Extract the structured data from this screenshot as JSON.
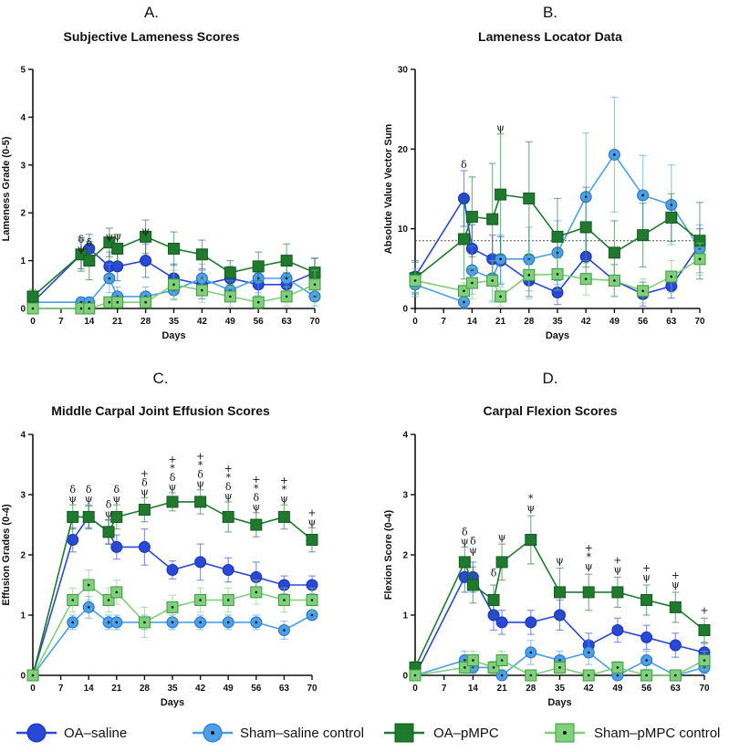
{
  "legend": [
    {
      "name": "OA–saline",
      "marker": "circle",
      "fill": "#2848d8",
      "stroke": "#1a32a8",
      "dot": false
    },
    {
      "name": "Sham–saline control",
      "marker": "circle",
      "fill": "#4aa0e8",
      "stroke": "#2a6fc0",
      "dot": true
    },
    {
      "name": "OA–pMPC",
      "marker": "square",
      "fill": "#1f7a2e",
      "stroke": "#145a20",
      "dot": false
    },
    {
      "name": "Sham–pMPC control",
      "marker": "square",
      "fill": "#7ed07a",
      "stroke": "#3e9a3e",
      "dot": true
    }
  ],
  "chart_data": [
    {
      "id": "A",
      "letter": "A.",
      "type": "line",
      "title": "Subjective Lameness Scores",
      "xlabel": "Days",
      "ylabel": "Lameness Grade (0-5)",
      "xlim": [
        0,
        70
      ],
      "ylim": [
        0,
        5
      ],
      "xticks": [
        0,
        7,
        14,
        21,
        28,
        35,
        42,
        49,
        56,
        63,
        70
      ],
      "yticks": [
        0,
        1,
        2,
        3,
        4,
        5
      ],
      "series": [
        {
          "name": "OA–saline",
          "x": [
            0,
            12,
            14,
            19,
            21,
            28,
            35,
            42,
            49,
            56,
            63,
            70
          ],
          "y": [
            0.13,
            1.13,
            1.25,
            0.88,
            0.88,
            1.0,
            0.63,
            0.5,
            0.63,
            0.5,
            0.5,
            0.75
          ],
          "err": [
            0.1,
            0.3,
            0.3,
            0.3,
            0.3,
            0.35,
            0.3,
            0.3,
            0.25,
            0.25,
            0.25,
            0.3
          ]
        },
        {
          "name": "Sham–saline control",
          "x": [
            0,
            12,
            14,
            19,
            21,
            28,
            35,
            42,
            49,
            56,
            63,
            70
          ],
          "y": [
            0.13,
            0.13,
            0.13,
            0.63,
            0.25,
            0.25,
            0.38,
            0.63,
            0.38,
            0.63,
            0.63,
            0.25
          ],
          "err": [
            0.1,
            0.1,
            0.1,
            0.3,
            0.2,
            0.2,
            0.2,
            0.3,
            0.2,
            0.3,
            0.3,
            0.2
          ]
        },
        {
          "name": "OA–pMPC",
          "x": [
            0,
            12,
            14,
            19,
            21,
            28,
            35,
            42,
            49,
            56,
            63,
            70
          ],
          "y": [
            0.25,
            1.13,
            1.0,
            1.38,
            1.25,
            1.5,
            1.25,
            1.13,
            0.75,
            0.88,
            1.0,
            0.75
          ],
          "err": [
            0.15,
            0.35,
            0.4,
            0.3,
            0.3,
            0.35,
            0.35,
            0.3,
            0.25,
            0.3,
            0.35,
            0.3
          ]
        },
        {
          "name": "Sham–pMPC control",
          "x": [
            0,
            12,
            14,
            19,
            21,
            28,
            35,
            42,
            49,
            56,
            63,
            70
          ],
          "y": [
            0.0,
            0.0,
            0.0,
            0.13,
            0.13,
            0.13,
            0.5,
            0.38,
            0.25,
            0.13,
            0.25,
            0.5
          ],
          "err": [
            0.05,
            0.05,
            0.05,
            0.1,
            0.1,
            0.1,
            0.3,
            0.25,
            0.2,
            0.15,
            0.2,
            0.3
          ]
        }
      ],
      "annotations": [
        {
          "x": 12,
          "y": 1.13,
          "lines": [
            "δ",
            "ψ"
          ]
        },
        {
          "x": 14,
          "y": 1.25,
          "lines": [
            "δ"
          ]
        },
        {
          "x": 19,
          "y": 1.38,
          "lines": [
            "ψ"
          ]
        },
        {
          "x": 21,
          "y": 1.38,
          "lines": [
            "ψ"
          ]
        },
        {
          "x": 28,
          "y": 1.5,
          "lines": [
            "ψ"
          ]
        }
      ]
    },
    {
      "id": "B",
      "letter": "B.",
      "type": "line",
      "title": "Lameness Locator Data",
      "xlabel": "Days",
      "ylabel": "Absolute Value Vector Sum",
      "xlim": [
        0,
        70
      ],
      "ylim": [
        0,
        30
      ],
      "xticks": [
        0,
        7,
        14,
        21,
        28,
        35,
        42,
        49,
        56,
        63,
        70
      ],
      "yticks": [
        0,
        10,
        20,
        30
      ],
      "reference_line": 8.5,
      "series": [
        {
          "name": "OA–saline",
          "x": [
            0,
            12,
            14,
            19,
            21,
            28,
            35,
            42,
            49,
            56,
            63,
            70
          ],
          "y": [
            4.0,
            13.8,
            7.5,
            6.2,
            6.0,
            3.5,
            2.0,
            6.5,
            3.5,
            1.8,
            2.8,
            8.0
          ],
          "err": [
            2,
            3.5,
            3,
            3,
            3,
            2,
            1.5,
            3,
            2,
            1.5,
            1.5,
            2
          ]
        },
        {
          "name": "Sham–saline control",
          "x": [
            0,
            12,
            14,
            19,
            21,
            28,
            35,
            42,
            49,
            56,
            63,
            70
          ],
          "y": [
            3.0,
            0.8,
            4.8,
            3.8,
            6.2,
            6.2,
            7.0,
            14.0,
            19.3,
            14.2,
            13.0,
            7.5
          ],
          "err": [
            1.5,
            0.8,
            3,
            3,
            3,
            4,
            4,
            8,
            7.2,
            5,
            5,
            3
          ]
        },
        {
          "name": "OA–pMPC",
          "x": [
            0,
            12,
            14,
            19,
            21,
            28,
            35,
            42,
            49,
            56,
            63,
            70
          ],
          "y": [
            3.8,
            8.7,
            11.5,
            11.2,
            14.3,
            13.8,
            9.0,
            10.2,
            7.0,
            9.2,
            11.4,
            8.5
          ],
          "err": [
            2,
            5,
            5,
            7,
            7.6,
            7.1,
            4.8,
            5,
            4,
            4,
            3,
            4.8
          ]
        },
        {
          "name": "Sham–pMPC control",
          "x": [
            0,
            12,
            14,
            19,
            21,
            28,
            35,
            42,
            49,
            56,
            63,
            70
          ],
          "y": [
            3.5,
            2.2,
            3.2,
            3.5,
            1.5,
            4.2,
            4.3,
            3.7,
            3.5,
            2.2,
            4.0,
            6.2
          ],
          "err": [
            1.5,
            1,
            2,
            2.5,
            1.2,
            3,
            2,
            2,
            2,
            1.5,
            2,
            2
          ]
        }
      ],
      "annotations": [
        {
          "x": 12,
          "y": 17.3,
          "lines": [
            "δ"
          ]
        },
        {
          "x": 21,
          "y": 21.9,
          "lines": [
            "ψ"
          ]
        }
      ]
    },
    {
      "id": "C",
      "letter": "C.",
      "type": "line",
      "title": "Middle Carpal Joint Effusion Scores",
      "xlabel": "Days",
      "ylabel": "Effusion Grades (0-4)",
      "xlim": [
        0,
        70
      ],
      "ylim": [
        0,
        4
      ],
      "xticks": [
        0,
        7,
        14,
        21,
        28,
        35,
        42,
        49,
        56,
        63,
        70
      ],
      "yticks": [
        0,
        1,
        2,
        3,
        4
      ],
      "series": [
        {
          "name": "OA–saline",
          "x": [
            0,
            10,
            14,
            19,
            21,
            28,
            35,
            42,
            49,
            56,
            63,
            70
          ],
          "y": [
            0,
            2.25,
            2.63,
            2.38,
            2.13,
            2.13,
            1.75,
            1.88,
            1.75,
            1.63,
            1.5,
            1.5
          ],
          "err": [
            0.02,
            0.2,
            0.18,
            0.2,
            0.2,
            0.3,
            0.15,
            0.3,
            0.2,
            0.25,
            0.15,
            0.15
          ]
        },
        {
          "name": "Sham–saline control",
          "x": [
            0,
            10,
            14,
            19,
            21,
            28,
            35,
            42,
            49,
            56,
            63,
            70
          ],
          "y": [
            0,
            0.88,
            1.13,
            0.88,
            0.88,
            0.88,
            0.88,
            0.88,
            0.88,
            0.88,
            0.75,
            1.0
          ],
          "err": [
            0.02,
            0.12,
            0.18,
            0.12,
            0.12,
            0.12,
            0.12,
            0.12,
            0.12,
            0.12,
            0.15,
            0.05
          ]
        },
        {
          "name": "OA–pMPC",
          "x": [
            0,
            10,
            14,
            19,
            21,
            28,
            35,
            42,
            49,
            56,
            63,
            70
          ],
          "y": [
            0,
            2.63,
            2.63,
            2.38,
            2.63,
            2.75,
            2.88,
            2.88,
            2.63,
            2.5,
            2.63,
            2.25
          ],
          "err": [
            0.02,
            0.2,
            0.2,
            0.2,
            0.2,
            0.2,
            0.15,
            0.2,
            0.25,
            0.2,
            0.2,
            0.2
          ]
        },
        {
          "name": "Sham–pMPC control",
          "x": [
            0,
            10,
            14,
            19,
            21,
            28,
            35,
            42,
            49,
            56,
            63,
            70
          ],
          "y": [
            0,
            1.25,
            1.5,
            1.25,
            1.38,
            0.88,
            1.13,
            1.25,
            1.25,
            1.38,
            1.25,
            1.25
          ],
          "err": [
            0.02,
            0.2,
            0.25,
            0.2,
            0.2,
            0.25,
            0.2,
            0.2,
            0.2,
            0.2,
            0.2,
            0.2
          ]
        }
      ],
      "annotations": [
        {
          "x": 10,
          "y": 2.83,
          "lines": [
            "δ",
            "ψ"
          ]
        },
        {
          "x": 14,
          "y": 2.83,
          "lines": [
            "δ",
            "ψ"
          ]
        },
        {
          "x": 19,
          "y": 2.58,
          "lines": [
            "δ",
            "ψ"
          ]
        },
        {
          "x": 21,
          "y": 2.83,
          "lines": [
            "δ",
            "ψ"
          ]
        },
        {
          "x": 28,
          "y": 2.95,
          "lines": [
            "+",
            "δ",
            "ψ"
          ]
        },
        {
          "x": 35,
          "y": 3.03,
          "lines": [
            "+",
            "*",
            "δ",
            "ψ"
          ]
        },
        {
          "x": 42,
          "y": 3.08,
          "lines": [
            "+",
            "*",
            "δ",
            "ψ"
          ]
        },
        {
          "x": 49,
          "y": 2.88,
          "lines": [
            "+",
            "*",
            "δ",
            "ψ"
          ]
        },
        {
          "x": 56,
          "y": 2.7,
          "lines": [
            "+",
            "*",
            "δ",
            "ψ"
          ]
        },
        {
          "x": 63,
          "y": 2.83,
          "lines": [
            "+",
            "*",
            "ψ"
          ]
        },
        {
          "x": 70,
          "y": 2.45,
          "lines": [
            "+",
            "ψ"
          ]
        }
      ]
    },
    {
      "id": "D",
      "letter": "D.",
      "type": "line",
      "title": "Carpal Flexion Scores",
      "xlabel": "Days",
      "ylabel": "Flexion Score (0-4)",
      "xlim": [
        0,
        70
      ],
      "ylim": [
        0,
        4
      ],
      "xticks": [
        0,
        7,
        14,
        21,
        28,
        35,
        42,
        49,
        56,
        63,
        70
      ],
      "yticks": [
        0,
        1,
        2,
        3,
        4
      ],
      "series": [
        {
          "name": "OA–saline",
          "x": [
            0,
            12,
            14,
            19,
            21,
            28,
            35,
            42,
            49,
            56,
            63,
            70
          ],
          "y": [
            0,
            1.63,
            1.63,
            1.0,
            0.88,
            0.88,
            1.0,
            0.5,
            0.75,
            0.63,
            0.5,
            0.38
          ],
          "err": [
            0.02,
            0.25,
            0.25,
            0.25,
            0.2,
            0.2,
            0.25,
            0.2,
            0.2,
            0.2,
            0.2,
            0.15
          ]
        },
        {
          "name": "Sham–saline control",
          "x": [
            0,
            12,
            14,
            19,
            21,
            28,
            35,
            42,
            49,
            56,
            63,
            70
          ],
          "y": [
            0,
            0.25,
            0.13,
            0.13,
            0,
            0.38,
            0.25,
            0.38,
            0,
            0.25,
            0,
            0.13
          ],
          "err": [
            0.02,
            0.15,
            0.1,
            0.1,
            0.02,
            0.2,
            0.15,
            0.2,
            0.02,
            0.15,
            0.02,
            0.1
          ]
        },
        {
          "name": "OA–pMPC",
          "x": [
            0,
            12,
            14,
            19,
            21,
            28,
            35,
            42,
            49,
            56,
            63,
            70
          ],
          "y": [
            0.13,
            1.88,
            1.5,
            1.25,
            1.88,
            2.25,
            1.38,
            1.38,
            1.38,
            1.25,
            1.13,
            0.75
          ],
          "err": [
            0.1,
            0.25,
            0.3,
            0.25,
            0.3,
            0.4,
            0.4,
            0.3,
            0.25,
            0.25,
            0.25,
            0.2
          ]
        },
        {
          "name": "Sham–pMPC control",
          "x": [
            0,
            12,
            14,
            19,
            21,
            28,
            35,
            42,
            49,
            56,
            63,
            70
          ],
          "y": [
            0,
            0.13,
            0.25,
            0.13,
            0.25,
            0,
            0.13,
            0,
            0.13,
            0,
            0,
            0.25
          ],
          "err": [
            0.02,
            0.1,
            0.15,
            0.1,
            0.15,
            0.02,
            0.1,
            0.02,
            0.1,
            0.02,
            0.02,
            0.15
          ]
        }
      ],
      "annotations": [
        {
          "x": 12,
          "y": 2.13,
          "lines": [
            "δ",
            "ψ"
          ]
        },
        {
          "x": 14,
          "y": 1.98,
          "lines": [
            "δ",
            "ψ"
          ]
        },
        {
          "x": 19,
          "y": 1.6,
          "lines": [
            "δ"
          ]
        },
        {
          "x": 21,
          "y": 2.2,
          "lines": [
            "ψ"
          ]
        },
        {
          "x": 28,
          "y": 2.68,
          "lines": [
            "*",
            "ψ"
          ]
        },
        {
          "x": 35,
          "y": 1.81,
          "lines": [
            "ψ"
          ]
        },
        {
          "x": 42,
          "y": 1.71,
          "lines": [
            "+",
            "*",
            "ψ"
          ]
        },
        {
          "x": 49,
          "y": 1.66,
          "lines": [
            "+",
            "ψ"
          ]
        },
        {
          "x": 56,
          "y": 1.53,
          "lines": [
            "+",
            "ψ"
          ]
        },
        {
          "x": 63,
          "y": 1.41,
          "lines": [
            "+",
            "ψ"
          ]
        },
        {
          "x": 70,
          "y": 0.98,
          "lines": [
            "+"
          ]
        }
      ]
    }
  ]
}
